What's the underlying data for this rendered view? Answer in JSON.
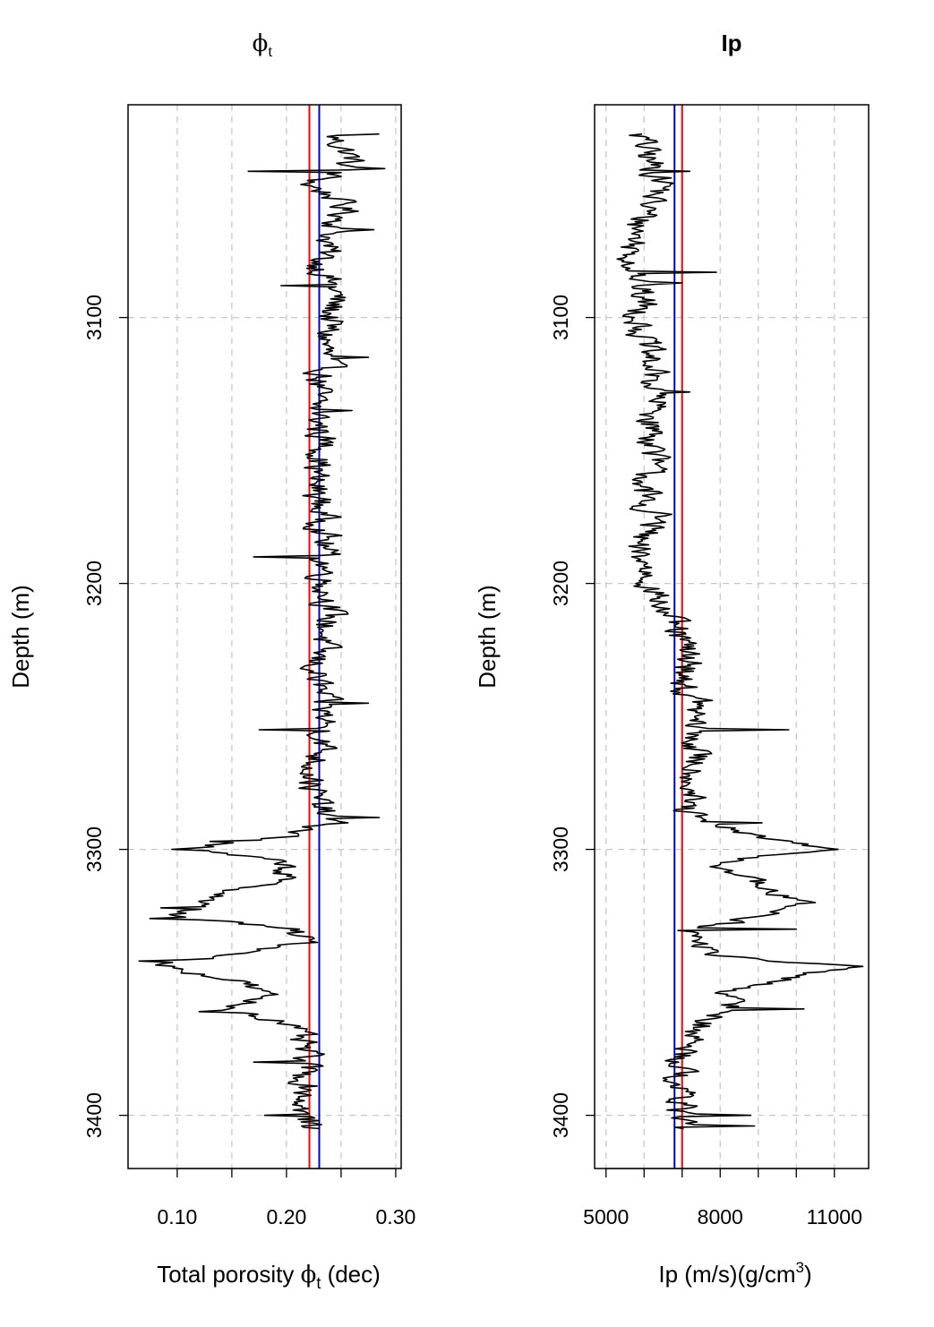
{
  "chart_data": [
    {
      "type": "line",
      "title": "ϕ",
      "title_subscript": "t",
      "xlabel_parts": [
        "Total porosity ",
        "ϕ",
        "t",
        " (dec)"
      ],
      "ylabel": "Depth (m)",
      "xlim": [
        0.055,
        0.305
      ],
      "ylim": [
        3420,
        3020
      ],
      "x_ticks": [
        0.1,
        0.15,
        0.2,
        0.25,
        0.3
      ],
      "x_tick_labels": [
        "0.10",
        "",
        "0.20",
        "",
        "0.30"
      ],
      "y_ticks": [
        3100,
        3200,
        3300,
        3400
      ],
      "y_tick_labels": [
        "3100",
        "3200",
        "3300",
        "3400"
      ],
      "grid": true,
      "reference_lines": [
        {
          "color": "#ff0000",
          "x": 0.221
        },
        {
          "color": "#0000cc",
          "x": 0.23
        }
      ],
      "series_color": "#000000",
      "depth_range": [
        3031,
        3405
      ],
      "anchors": [
        [
          3031,
          0.24
        ],
        [
          3040,
          0.26
        ],
        [
          3045,
          0.25
        ],
        [
          3050,
          0.22
        ],
        [
          3055,
          0.245
        ],
        [
          3060,
          0.255
        ],
        [
          3070,
          0.24
        ],
        [
          3080,
          0.23
        ],
        [
          3090,
          0.245
        ],
        [
          3100,
          0.24
        ],
        [
          3110,
          0.235
        ],
        [
          3120,
          0.235
        ],
        [
          3130,
          0.225
        ],
        [
          3140,
          0.23
        ],
        [
          3150,
          0.235
        ],
        [
          3160,
          0.225
        ],
        [
          3170,
          0.23
        ],
        [
          3180,
          0.235
        ],
        [
          3190,
          0.235
        ],
        [
          3200,
          0.235
        ],
        [
          3210,
          0.24
        ],
        [
          3220,
          0.235
        ],
        [
          3230,
          0.225
        ],
        [
          3240,
          0.23
        ],
        [
          3250,
          0.235
        ],
        [
          3260,
          0.235
        ],
        [
          3270,
          0.225
        ],
        [
          3280,
          0.225
        ],
        [
          3290,
          0.24
        ],
        [
          3295,
          0.2
        ],
        [
          3300,
          0.11
        ],
        [
          3305,
          0.2
        ],
        [
          3310,
          0.2
        ],
        [
          3315,
          0.16
        ],
        [
          3320,
          0.12
        ],
        [
          3325,
          0.1
        ],
        [
          3330,
          0.2
        ],
        [
          3335,
          0.22
        ],
        [
          3340,
          0.15
        ],
        [
          3343,
          0.08
        ],
        [
          3350,
          0.16
        ],
        [
          3355,
          0.18
        ],
        [
          3360,
          0.15
        ],
        [
          3365,
          0.2
        ],
        [
          3370,
          0.21
        ],
        [
          3375,
          0.215
        ],
        [
          3380,
          0.22
        ],
        [
          3385,
          0.215
        ],
        [
          3390,
          0.22
        ],
        [
          3395,
          0.215
        ],
        [
          3400,
          0.215
        ],
        [
          3405,
          0.22
        ]
      ],
      "spikes": [
        [
          3031,
          0.285
        ],
        [
          3044,
          0.29
        ],
        [
          3045,
          0.165
        ],
        [
          3067,
          0.28
        ],
        [
          3088,
          0.195
        ],
        [
          3115,
          0.275
        ],
        [
          3135,
          0.26
        ],
        [
          3190,
          0.17
        ],
        [
          3245,
          0.275
        ],
        [
          3255,
          0.175
        ],
        [
          3288,
          0.285
        ],
        [
          3297,
          0.13
        ],
        [
          3300,
          0.095
        ],
        [
          3322,
          0.085
        ],
        [
          3326,
          0.075
        ],
        [
          3342,
          0.065
        ],
        [
          3361,
          0.12
        ],
        [
          3380,
          0.17
        ],
        [
          3400,
          0.18
        ],
        [
          3402,
          0.23
        ]
      ]
    },
    {
      "type": "line",
      "title": "Ip",
      "xlabel_parts": [
        "Ip (m/s)(g/cm",
        "3",
        ")"
      ],
      "ylabel": "Depth (m)",
      "xlim": [
        4700,
        11900
      ],
      "ylim": [
        3420,
        3020
      ],
      "x_ticks": [
        5000,
        6000,
        7000,
        8000,
        9000,
        10000,
        11000
      ],
      "x_tick_labels": [
        "5000",
        "",
        "",
        "8000",
        "",
        "",
        "11000"
      ],
      "y_ticks": [
        3100,
        3200,
        3300,
        3400
      ],
      "y_tick_labels": [
        "3100",
        "3200",
        "3300",
        "3400"
      ],
      "grid": true,
      "reference_lines": [
        {
          "color": "#0000cc",
          "x": 6800
        },
        {
          "color": "#ff0000",
          "x": 7000
        }
      ],
      "series_color": "#000000",
      "depth_range": [
        3031,
        3405
      ],
      "anchors": [
        [
          3031,
          5900
        ],
        [
          3040,
          6100
        ],
        [
          3045,
          6300
        ],
        [
          3050,
          6600
        ],
        [
          3055,
          6200
        ],
        [
          3065,
          5900
        ],
        [
          3075,
          5700
        ],
        [
          3085,
          5800
        ],
        [
          3095,
          6000
        ],
        [
          3100,
          5900
        ],
        [
          3110,
          6000
        ],
        [
          3120,
          6200
        ],
        [
          3130,
          6300
        ],
        [
          3140,
          6200
        ],
        [
          3150,
          6300
        ],
        [
          3160,
          6100
        ],
        [
          3170,
          5900
        ],
        [
          3175,
          6400
        ],
        [
          3180,
          6100
        ],
        [
          3185,
          5700
        ],
        [
          3190,
          5900
        ],
        [
          3200,
          6200
        ],
        [
          3210,
          6500
        ],
        [
          3220,
          6900
        ],
        [
          3230,
          7200
        ],
        [
          3240,
          7000
        ],
        [
          3245,
          7400
        ],
        [
          3250,
          7300
        ],
        [
          3260,
          7300
        ],
        [
          3270,
          7400
        ],
        [
          3280,
          7200
        ],
        [
          3285,
          7000
        ],
        [
          3290,
          7500
        ],
        [
          3295,
          9000
        ],
        [
          3300,
          10600
        ],
        [
          3305,
          8000
        ],
        [
          3310,
          8500
        ],
        [
          3315,
          9200
        ],
        [
          3320,
          10000
        ],
        [
          3325,
          9400
        ],
        [
          3330,
          7200
        ],
        [
          3335,
          7300
        ],
        [
          3340,
          8000
        ],
        [
          3344,
          11200
        ],
        [
          3350,
          9300
        ],
        [
          3355,
          8000
        ],
        [
          3360,
          8400
        ],
        [
          3365,
          7600
        ],
        [
          3370,
          7300
        ],
        [
          3380,
          7000
        ],
        [
          3390,
          6900
        ],
        [
          3395,
          7000
        ],
        [
          3400,
          7200
        ],
        [
          3405,
          7000
        ]
      ],
      "spikes": [
        [
          3031,
          5950
        ],
        [
          3045,
          7200
        ],
        [
          3083,
          7900
        ],
        [
          3085,
          5700
        ],
        [
          3087,
          7000
        ],
        [
          3104,
          5700
        ],
        [
          3128,
          7200
        ],
        [
          3165,
          5750
        ],
        [
          3186,
          5600
        ],
        [
          3255,
          9800
        ],
        [
          3290,
          9100
        ],
        [
          3300,
          11100
        ],
        [
          3320,
          10500
        ],
        [
          3330,
          10000
        ],
        [
          3344,
          11750
        ],
        [
          3360,
          10200
        ],
        [
          3398,
          6600
        ],
        [
          3400,
          8800
        ],
        [
          3404,
          8900
        ]
      ]
    }
  ]
}
